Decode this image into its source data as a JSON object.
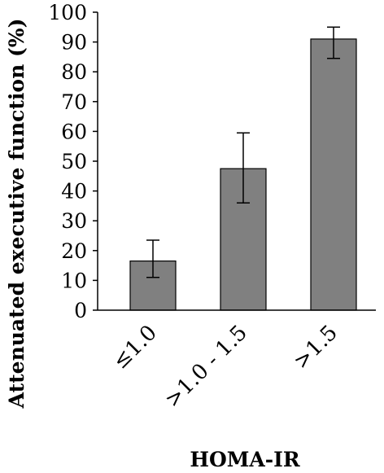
{
  "chart_data": {
    "type": "bar",
    "categories": [
      "≤1.0",
      ">1.0 - 1.5",
      ">1.5"
    ],
    "values": [
      16.5,
      47.5,
      91.0
    ],
    "error_low": [
      11.0,
      36.0,
      84.5
    ],
    "error_high": [
      23.5,
      59.5,
      95.0
    ],
    "ylim": [
      0,
      100
    ],
    "yticks": [
      "0",
      "10",
      "20",
      "30",
      "40",
      "50",
      "60",
      "70",
      "80",
      "90",
      "100"
    ],
    "xlabel": "HOMA-IR",
    "ylabel": "Attenuated executive function (%)",
    "grid": false,
    "legend": "none",
    "bar_color": "#808080",
    "bar_edge_color": "#000000"
  }
}
